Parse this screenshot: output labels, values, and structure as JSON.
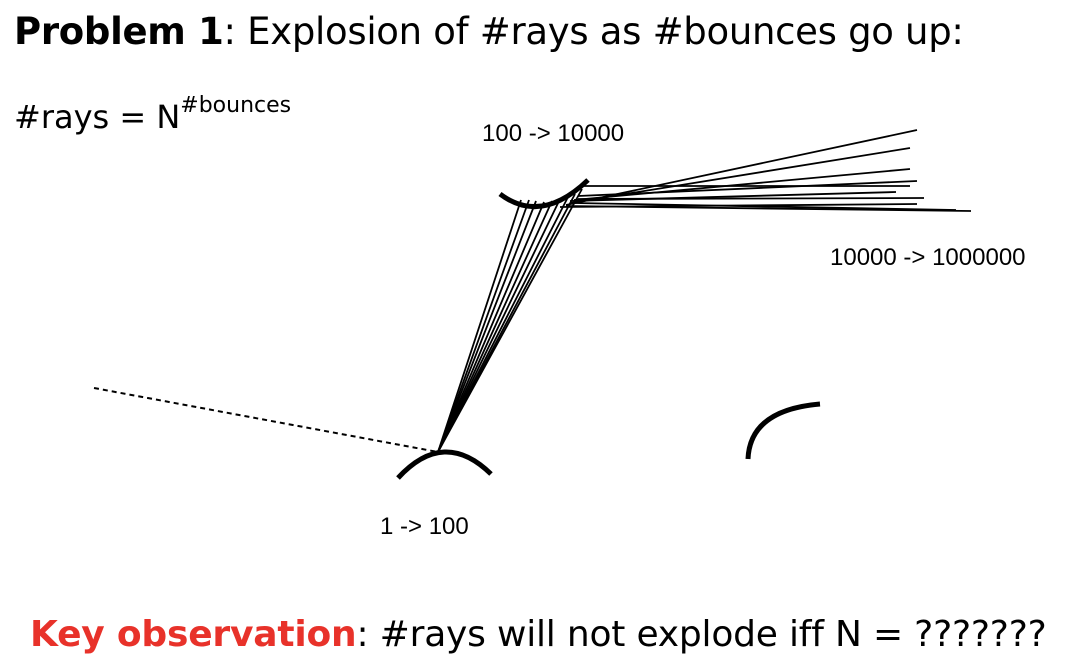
{
  "title": {
    "bold": "Problem 1",
    "rest": ": Explosion of #rays as #bounces go up:"
  },
  "formula": {
    "base": "#rays = N",
    "exponent": "#bounces"
  },
  "labels": {
    "first_bounce": "1 -> 100",
    "second_bounce": "100 -> 10000",
    "third_bounce": "10000 -> 1000000"
  },
  "key_observation": {
    "bold": "Key observation",
    "rest": ": #rays will not explode iff N = ???????"
  },
  "colors": {
    "accent": "#e8322a",
    "text": "#000000"
  }
}
